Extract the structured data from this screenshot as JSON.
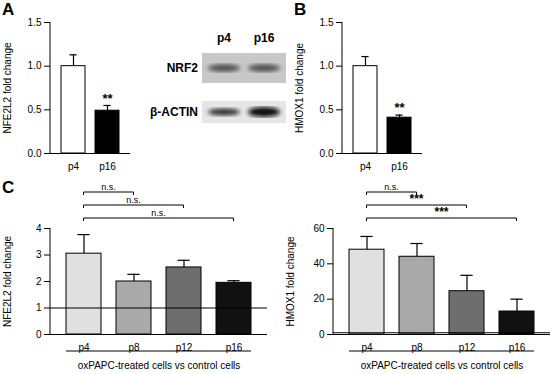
{
  "chart_data": [
    {
      "panel": "A",
      "type": "bar",
      "categories": [
        "p4",
        "p16"
      ],
      "values": [
        1.0,
        0.49
      ],
      "errors": [
        0.13,
        0.06
      ],
      "colors": [
        "#ffffff",
        "#000000"
      ],
      "y_label": "NFE2L2 fold change",
      "ylim": [
        0,
        1.5
      ],
      "yticks": [
        {
          "value": 0,
          "label": "0.0"
        },
        {
          "value": 0.5,
          "label": "0.5"
        },
        {
          "value": 1,
          "label": "1.0"
        },
        {
          "value": 1.5,
          "label": "1.5"
        }
      ],
      "annotations": [
        {
          "category": "p16",
          "text": "**"
        }
      ]
    },
    {
      "panel": "B",
      "type": "bar",
      "categories": [
        "p4",
        "p16"
      ],
      "values": [
        1.0,
        0.41
      ],
      "errors": [
        0.11,
        0.03
      ],
      "colors": [
        "#ffffff",
        "#000000"
      ],
      "y_label": "HMOX1 fold change",
      "ylim": [
        0,
        1.5
      ],
      "yticks": [
        {
          "value": 0,
          "label": "0.0"
        },
        {
          "value": 0.5,
          "label": "0.5"
        },
        {
          "value": 1,
          "label": "1.0"
        },
        {
          "value": 1.5,
          "label": "1.5"
        }
      ],
      "annotations": [
        {
          "category": "p16",
          "text": "**"
        }
      ]
    },
    {
      "panel": "C",
      "type": "bar",
      "categories": [
        "p4",
        "p8",
        "p12",
        "p16"
      ],
      "values": [
        3.05,
        2.0,
        2.53,
        1.95
      ],
      "errors": [
        0.72,
        0.27,
        0.27,
        0.08
      ],
      "colors": [
        "#e0e0e0",
        "#a9a9a9",
        "#6e6e6e",
        "#111111"
      ],
      "y_label": "NFE2L2 fold change",
      "x_label": "oxPAPC-treated cells vs control cells",
      "ylim": [
        0,
        4
      ],
      "yticks": [
        0,
        1,
        2,
        3,
        4
      ],
      "reference_line": 1,
      "brackets": [
        {
          "from": "p4",
          "to": "p8",
          "text": "n.s."
        },
        {
          "from": "p4",
          "to": "p12",
          "text": "n.s."
        },
        {
          "from": "p4",
          "to": "p16",
          "text": "n.s."
        }
      ]
    },
    {
      "type": "bar",
      "categories": [
        "p4",
        "p8",
        "p12",
        "p16"
      ],
      "values": [
        48,
        44,
        24.5,
        13
      ],
      "errors": [
        7.5,
        7.5,
        9,
        7
      ],
      "colors": [
        "#e0e0e0",
        "#a9a9a9",
        "#6e6e6e",
        "#111111"
      ],
      "y_label": "HMOX1 fold change",
      "x_label": "oxPAPC-treated cells vs control cells",
      "ylim": [
        0,
        60
      ],
      "yticks": [
        0,
        20,
        40,
        60
      ],
      "reference_line": 1,
      "brackets": [
        {
          "from": "p4",
          "to": "p8",
          "text": "n.s."
        },
        {
          "from": "p4",
          "to": "p12",
          "text": "***"
        },
        {
          "from": "p4",
          "to": "p16",
          "text": "***"
        }
      ]
    }
  ],
  "blot": {
    "lanes": [
      "p4",
      "p16"
    ],
    "rows": [
      "NRF2",
      "β-ACTIN"
    ]
  }
}
